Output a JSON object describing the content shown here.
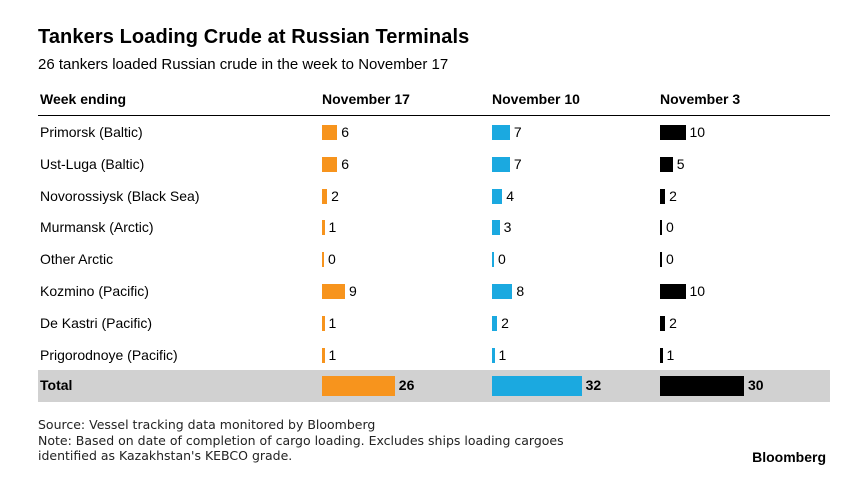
{
  "title": "Tankers Loading Crude at Russian Terminals",
  "subtitle": "26 tankers loaded Russian crude in the week to November 17",
  "source": "Source: Vessel tracking data monitored by Bloomberg",
  "note_line1": "Note: Based on date of completion of cargo loading. Excludes ships loading cargoes",
  "note_line2": "identified as Kazakhstan's KEBCO grade.",
  "brand": "Bloomberg",
  "chart_data": {
    "type": "table",
    "row_header": "Week ending",
    "columns": [
      "November 17",
      "November 10",
      "November 3"
    ],
    "colors": [
      "#f7941d",
      "#1ba9e0",
      "#000000"
    ],
    "rows": [
      {
        "label": "Primorsk (Baltic)",
        "values": [
          6,
          7,
          10
        ]
      },
      {
        "label": "Ust-Luga (Baltic)",
        "values": [
          6,
          7,
          5
        ]
      },
      {
        "label": "Novorossiysk (Black Sea)",
        "values": [
          2,
          4,
          2
        ]
      },
      {
        "label": "Murmansk (Arctic)",
        "values": [
          1,
          3,
          0
        ]
      },
      {
        "label": "Other Arctic",
        "values": [
          0,
          0,
          0
        ]
      },
      {
        "label": "Kozmino (Pacific)",
        "values": [
          9,
          8,
          10
        ]
      },
      {
        "label": "De Kastri (Pacific)",
        "values": [
          1,
          2,
          2
        ]
      },
      {
        "label": "Prigorodnoye (Pacific)",
        "values": [
          1,
          1,
          1
        ]
      }
    ],
    "total": {
      "label": "Total",
      "values": [
        26,
        32,
        30
      ]
    }
  }
}
